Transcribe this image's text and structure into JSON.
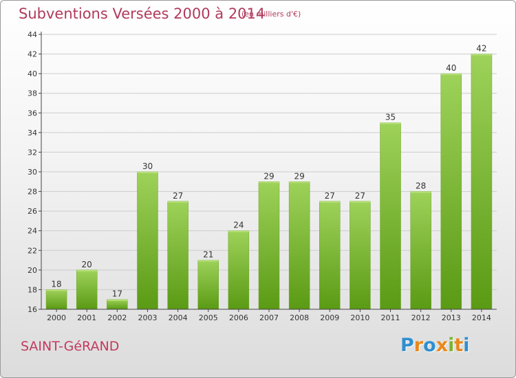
{
  "header": {
    "title": "Subventions Versées 2000 à 2014",
    "subtitle": "(en milliers d'€)"
  },
  "footer": {
    "commune": "SAINT-GéRAND",
    "logo_text": "Proxiti",
    "logo_colors": [
      "#2f8fd0",
      "#e8891c",
      "#2f8fd0",
      "#e8891c",
      "#7bb432",
      "#e8891c",
      "#2f8fd0"
    ]
  },
  "colors": {
    "title": "#b03a5b",
    "bar_light": "#9ed25a",
    "bar_dark": "#5a9a14",
    "grid": "#cccccc",
    "axis": "#444444"
  },
  "chart_data": {
    "type": "bar",
    "categories": [
      "2000",
      "2001",
      "2002",
      "2003",
      "2004",
      "2005",
      "2006",
      "2007",
      "2008",
      "2009",
      "2010",
      "2011",
      "2012",
      "2013",
      "2014"
    ],
    "values": [
      18,
      20,
      17,
      30,
      27,
      21,
      24,
      29,
      29,
      27,
      27,
      35,
      28,
      40,
      42
    ],
    "title": "Subventions Versées 2000 à 2014",
    "subtitle": "(en milliers d'€)",
    "ylim": [
      16,
      44
    ],
    "yticks": [
      16,
      18,
      20,
      22,
      24,
      26,
      28,
      30,
      32,
      34,
      36,
      38,
      40,
      42,
      44
    ],
    "grid": true,
    "data_labels": true
  }
}
